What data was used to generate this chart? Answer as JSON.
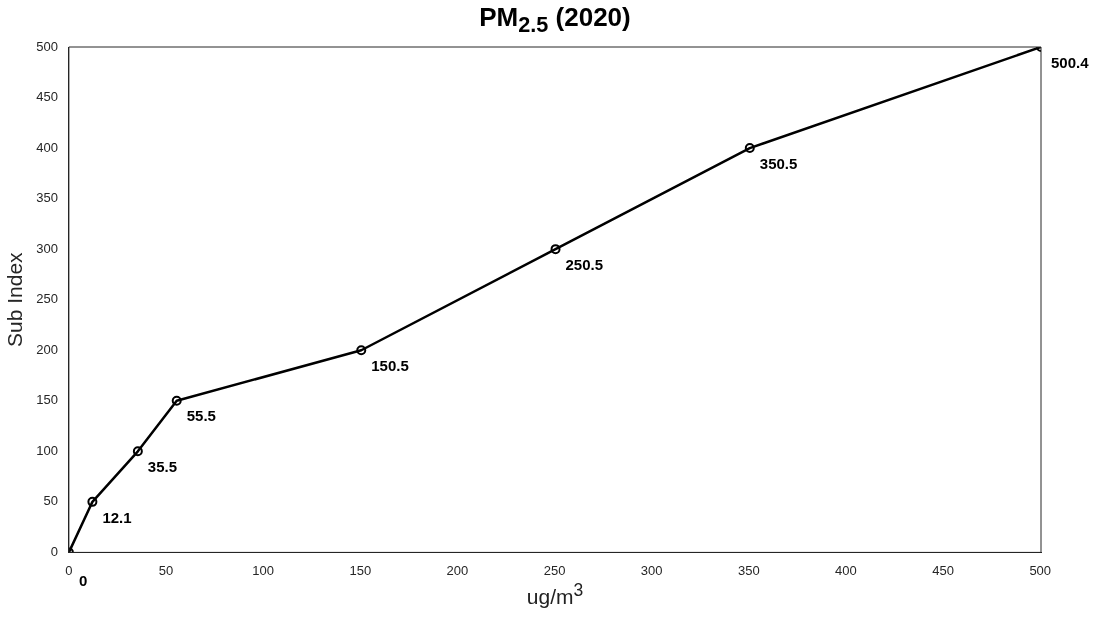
{
  "chart_data": {
    "type": "line",
    "title": "PM$_{2.5}$ (2020)",
    "xlabel": "ug/m$^{3}$",
    "ylabel": "Sub Index",
    "x": [
      0,
      12.1,
      35.5,
      55.5,
      150.5,
      250.5,
      350.5,
      500.4
    ],
    "series": [
      {
        "color": "#000000",
        "values": [
          0,
          50,
          100,
          150,
          200,
          300,
          400,
          500
        ]
      }
    ],
    "xlim": [
      0,
      500.4
    ],
    "xticks": [
      0,
      50,
      100,
      150,
      200,
      250,
      300,
      350,
      400,
      450,
      500
    ],
    "ylim": [
      0,
      500
    ],
    "yticks": [
      0,
      50,
      100,
      150,
      200,
      250,
      300,
      350,
      400,
      450,
      500
    ],
    "grid": false,
    "legend": false,
    "marker": "circle",
    "line_style": "solid",
    "annotations": [
      {
        "text": "0",
        "x": 0,
        "y": 0
      },
      {
        "text": "12.1",
        "x": 12.1,
        "y": 50
      },
      {
        "text": "35.5",
        "x": 35.5,
        "y": 100
      },
      {
        "text": "55.5",
        "x": 55.5,
        "y": 150
      },
      {
        "text": "150.5",
        "x": 150.5,
        "y": 200
      },
      {
        "text": "250.5",
        "x": 250.5,
        "y": 300
      },
      {
        "text": "350.5",
        "x": 350.5,
        "y": 400
      },
      {
        "text": "500.4",
        "x": 500.4,
        "y": 500
      }
    ]
  }
}
